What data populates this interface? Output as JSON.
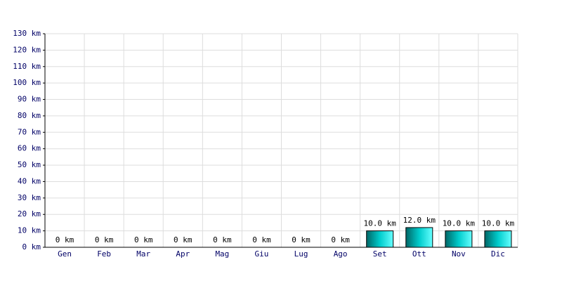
{
  "chart_data": {
    "type": "bar",
    "categories": [
      "Gen",
      "Feb",
      "Mar",
      "Apr",
      "Mag",
      "Giu",
      "Lug",
      "Ago",
      "Set",
      "Ott",
      "Nov",
      "Dic"
    ],
    "values": [
      0,
      0,
      0,
      0,
      0,
      0,
      0,
      0,
      10,
      12,
      10,
      10
    ],
    "value_labels": [
      "0 km",
      "0 km",
      "0 km",
      "0 km",
      "0 km",
      "0 km",
      "0 km",
      "0 km",
      "10.0 km",
      "12.0 km",
      "10.0 km",
      "10.0 km"
    ],
    "color": "#00cccc",
    "ylim": [
      0,
      130
    ],
    "yticks": [
      {
        "value": 0,
        "label": "0 km"
      },
      {
        "value": 10,
        "label": "10 km"
      },
      {
        "value": 20,
        "label": "20 km"
      },
      {
        "value": 30,
        "label": "30 km"
      },
      {
        "value": 40,
        "label": "40 km"
      },
      {
        "value": 50,
        "label": "50 km"
      },
      {
        "value": 60,
        "label": "60 km"
      },
      {
        "value": 70,
        "label": "70 km"
      },
      {
        "value": 80,
        "label": "80 km"
      },
      {
        "value": 90,
        "label": "90 km"
      },
      {
        "value": 100,
        "label": "100 km"
      },
      {
        "value": 110,
        "label": "110 km"
      },
      {
        "value": 120,
        "label": "120 km"
      },
      {
        "value": 130,
        "label": "130 km"
      }
    ],
    "grid": true
  }
}
